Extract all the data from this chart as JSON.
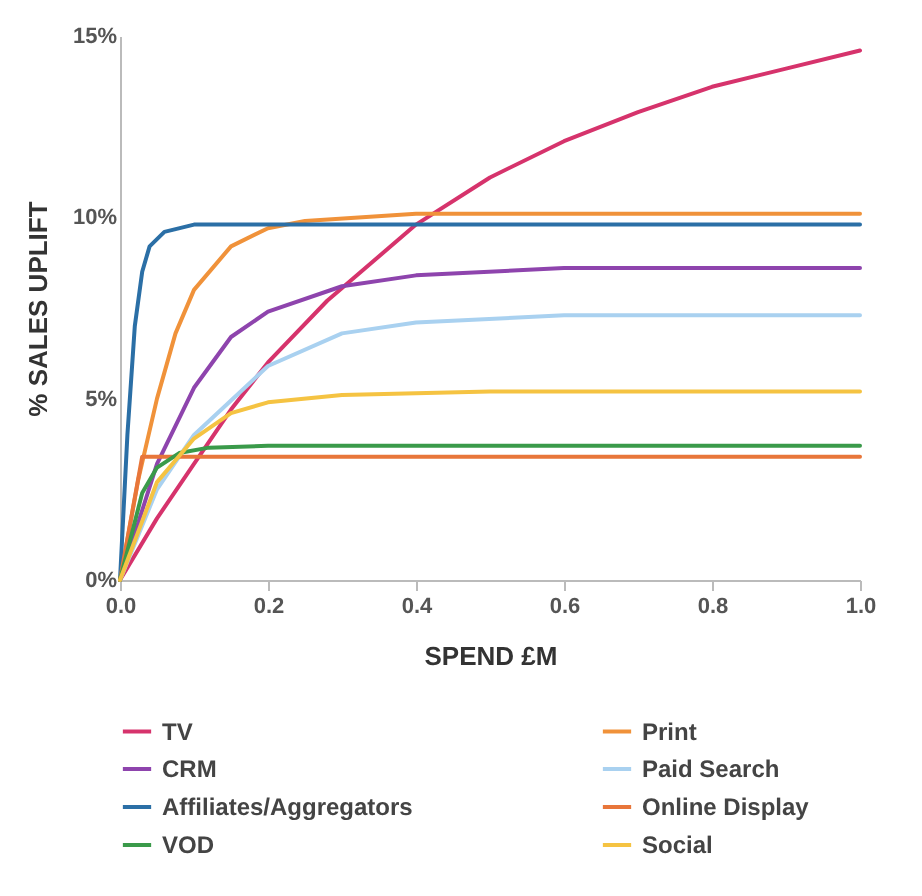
{
  "chart_data": {
    "type": "line",
    "xlabel": "SPEND £M",
    "ylabel": "% SALES UPLIFT",
    "xlim": [
      0,
      1
    ],
    "xticks": [
      {
        "value": 0,
        "label": "0.0"
      },
      0.2,
      0.4,
      0.6,
      0.8,
      {
        "value": 1,
        "label": "1.0"
      }
    ],
    "ylim": [
      0,
      15
    ],
    "yticks": [
      {
        "value": 0,
        "label": "0%"
      },
      {
        "value": 5,
        "label": "5%"
      },
      {
        "value": 10,
        "label": "10%"
      },
      {
        "value": 15,
        "label": "15%"
      }
    ],
    "grid": false,
    "legend": "bottom",
    "marker": "none",
    "line_style": "solid",
    "series": [
      {
        "name": "TV",
        "color": "#d6336c",
        "x": [
          0,
          0.05,
          0.1,
          0.15,
          0.2,
          0.28,
          0.4,
          0.5,
          0.6,
          0.7,
          0.8,
          0.9,
          1.0
        ],
        "values": [
          0,
          1.7,
          3.2,
          4.7,
          6.0,
          7.7,
          9.8,
          11.1,
          12.1,
          12.9,
          13.6,
          14.1,
          14.6
        ]
      },
      {
        "name": "Print",
        "color": "#f0923a",
        "x": [
          0,
          0.025,
          0.05,
          0.075,
          0.1,
          0.15,
          0.2,
          0.25,
          0.4,
          1.0
        ],
        "values": [
          0,
          2.8,
          5.0,
          6.8,
          8.0,
          9.2,
          9.7,
          9.9,
          10.1,
          10.1
        ]
      },
      {
        "name": "CRM",
        "color": "#8e44ad",
        "x": [
          0,
          0.05,
          0.1,
          0.15,
          0.2,
          0.3,
          0.4,
          0.6,
          1.0
        ],
        "values": [
          0,
          3.2,
          5.3,
          6.7,
          7.4,
          8.1,
          8.4,
          8.6,
          8.6
        ]
      },
      {
        "name": "Paid Search",
        "color": "#a9d1f0",
        "x": [
          0,
          0.05,
          0.1,
          0.2,
          0.3,
          0.4,
          0.6,
          1.0
        ],
        "values": [
          0,
          2.5,
          4.0,
          5.9,
          6.8,
          7.1,
          7.3,
          7.3
        ]
      },
      {
        "name": "Affiliates/Aggregators",
        "color": "#2b6fa6",
        "x": [
          0,
          0.01,
          0.02,
          0.03,
          0.04,
          0.06,
          0.1,
          0.2,
          1.0
        ],
        "values": [
          0,
          4.0,
          7.0,
          8.5,
          9.2,
          9.6,
          9.8,
          9.8,
          9.8
        ]
      },
      {
        "name": "Online Display",
        "color": "#e8763a",
        "x": [
          0,
          0.03,
          1.0
        ],
        "values": [
          0,
          3.4,
          3.4
        ]
      },
      {
        "name": "VOD",
        "color": "#3a9a4a",
        "x": [
          0,
          0.03,
          0.05,
          0.08,
          0.12,
          0.2,
          1.0
        ],
        "values": [
          0,
          2.4,
          3.1,
          3.5,
          3.65,
          3.7,
          3.7
        ]
      },
      {
        "name": "Social",
        "color": "#f5c342",
        "x": [
          0,
          0.05,
          0.1,
          0.15,
          0.2,
          0.3,
          0.5,
          1.0
        ],
        "values": [
          0,
          2.7,
          3.9,
          4.6,
          4.9,
          5.1,
          5.2,
          5.2
        ]
      }
    ]
  }
}
